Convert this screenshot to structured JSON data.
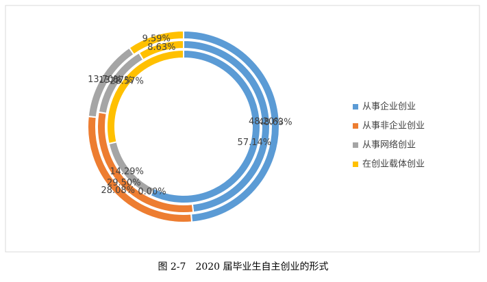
{
  "chart_data": {
    "type": "doughnut",
    "categories": [
      "从事企业创业",
      "从事非企业创业",
      "从事网络创业",
      "在创业载体创业"
    ],
    "colors": [
      "#5b9bd5",
      "#ed7d31",
      "#a5a5a5",
      "#ffc000"
    ],
    "series": [
      {
        "values": [
          48.63,
          28.08,
          13.7,
          9.59
        ],
        "value_labels": [
          "48.63%",
          "28.08%",
          "13.70%",
          "9.59%"
        ]
      },
      {
        "values": [
          48.2,
          29.5,
          13.67,
          8.63
        ],
        "value_labels": [
          "48.20%",
          "29.50%",
          "13.67%",
          "8.63%"
        ]
      },
      {
        "values": [
          57.14,
          0.0,
          14.29,
          28.57
        ],
        "value_labels": [
          "57.14%",
          "0.00%",
          "14.29%",
          "28.57%"
        ]
      }
    ],
    "legend": "right"
  },
  "caption": "图 2-7　2020 届毕业生自主创业的形式"
}
